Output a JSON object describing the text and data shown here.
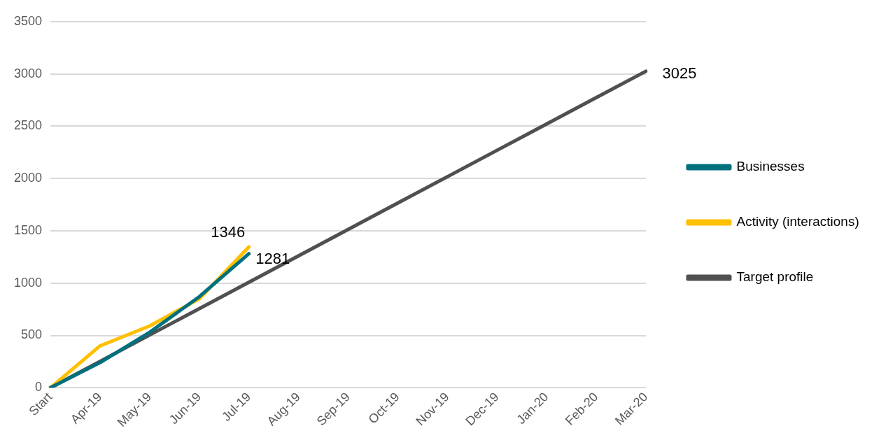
{
  "chart_data": {
    "type": "line",
    "categories": [
      "Start",
      "Apr-19",
      "May-19",
      "Jun-19",
      "Jul-19",
      "Aug-19",
      "Sep-19",
      "Oct-19",
      "Nov-19",
      "Dec-19",
      "Jan-20",
      "Feb-20",
      "Mar-20"
    ],
    "series": [
      {
        "name": "Businesses",
        "color": "#00707f",
        "values": [
          0,
          240,
          530,
          870,
          1281,
          null,
          null,
          null,
          null,
          null,
          null,
          null,
          null
        ],
        "value_labels": [
          null,
          null,
          null,
          null,
          "1281",
          null,
          null,
          null,
          null,
          null,
          null,
          null,
          null
        ]
      },
      {
        "name": "Activity (interactions)",
        "color": "#ffc000",
        "values": [
          0,
          400,
          590,
          850,
          1346,
          null,
          null,
          null,
          null,
          null,
          null,
          null,
          null
        ],
        "value_labels": [
          null,
          null,
          null,
          null,
          "1346",
          null,
          null,
          null,
          null,
          null,
          null,
          null,
          null
        ]
      },
      {
        "name": "Target profile",
        "color": "#505050",
        "values": [
          0,
          252,
          504,
          756,
          1008,
          1260,
          1513,
          1765,
          2017,
          2269,
          2521,
          2773,
          3025
        ],
        "value_labels": [
          null,
          null,
          null,
          null,
          null,
          null,
          null,
          null,
          null,
          null,
          null,
          null,
          "3025"
        ]
      }
    ],
    "ylim": [
      0,
      3500
    ],
    "yticks": [
      0,
      500,
      1000,
      1500,
      2000,
      2500,
      3000,
      3500
    ],
    "grid": "y",
    "legend": "right",
    "marker": "none",
    "line_style": "solid"
  }
}
